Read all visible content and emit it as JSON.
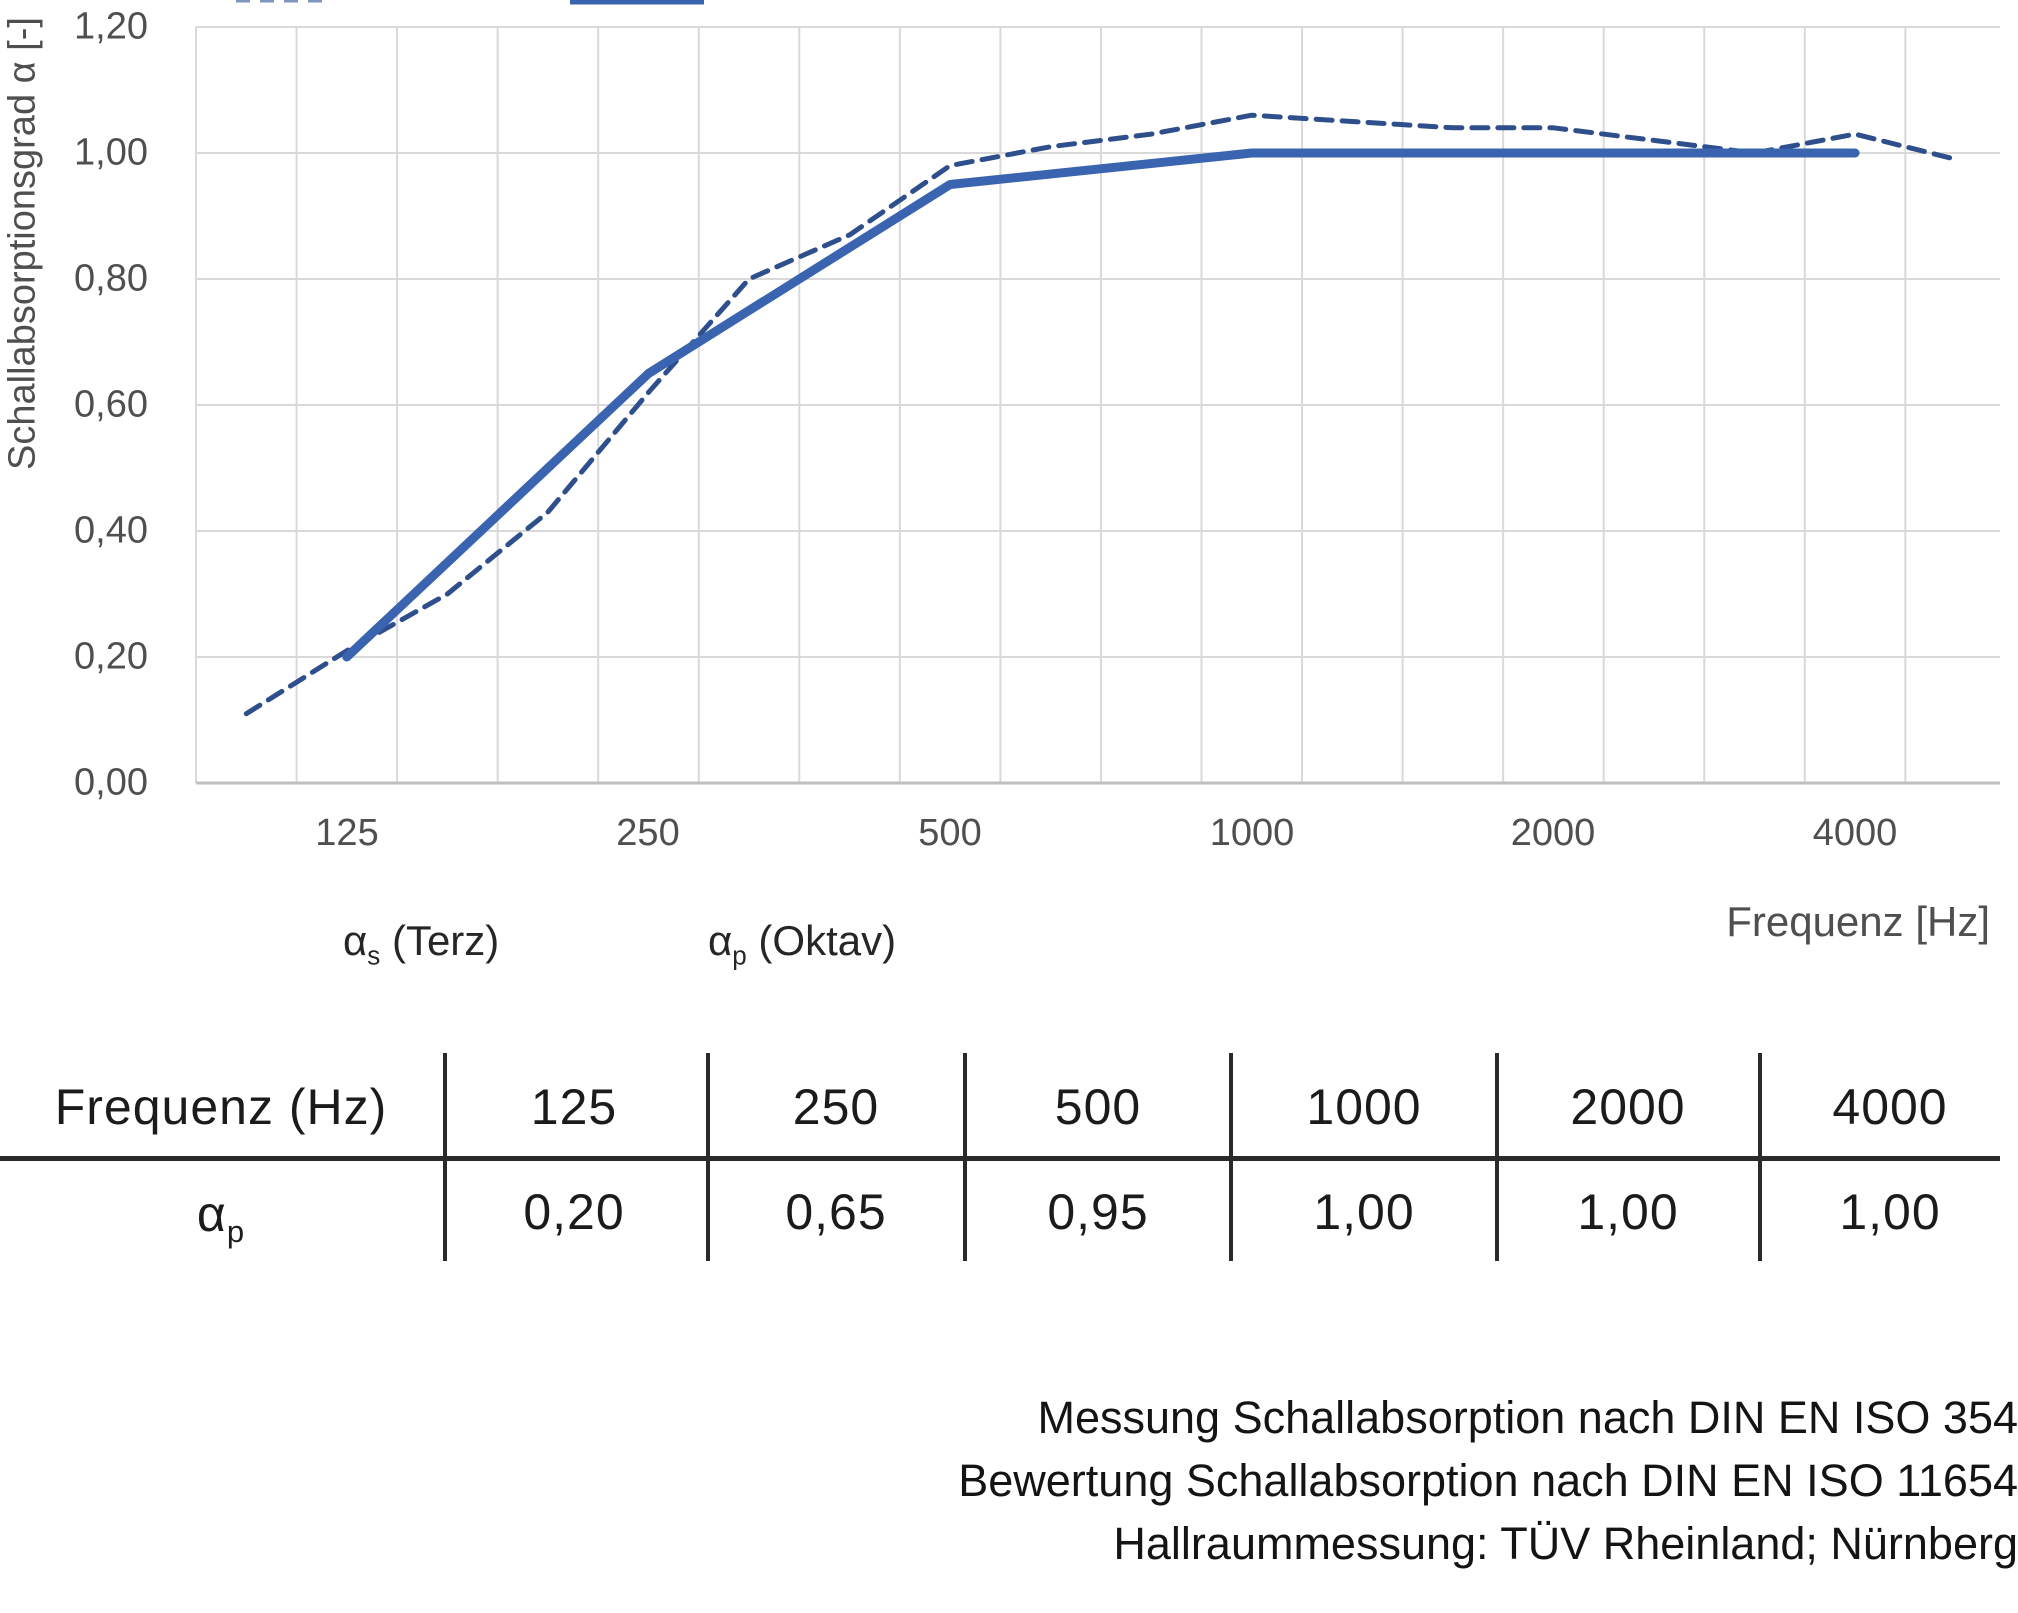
{
  "chart": {
    "y_axis_title": "Schallabsorptionsgrad α [-]",
    "x_axis_title": "Frequenz [Hz]",
    "y_ticks": [
      "1,20",
      "1,00",
      "0,80",
      "0,60",
      "0,40",
      "0,20",
      "0,00"
    ],
    "x_ticks": [
      "125",
      "250",
      "500",
      "1000",
      "2000",
      "4000"
    ],
    "colors": {
      "gridline": "#D9D9D9",
      "axis_line": "#BFBFBF",
      "tick_text": "#4f4f4f"
    },
    "legend": [
      {
        "alpha": "α",
        "sub": "s",
        "rest": " (Terz)",
        "swatch_color": "#8095BD",
        "swatch_style": "dashed"
      },
      {
        "alpha": "α",
        "sub": "p",
        "rest": " (Oktav)",
        "swatch_color": "#3A64AF",
        "swatch_style": "solid"
      }
    ]
  },
  "chart_data": {
    "type": "line",
    "title": "",
    "xlabel": "Frequenz [Hz]",
    "ylabel": "Schallabsorptionsgrad α [-]",
    "x_scale": "logarithmic, third-octave bands from 100 Hz to 5000 Hz",
    "ylim": [
      0,
      1.2
    ],
    "y_tick_step": 0.2,
    "x_tick_labels": [
      125,
      250,
      500,
      1000,
      2000,
      4000
    ],
    "grid": true,
    "legend_position": "bottom-left",
    "series": [
      {
        "name": "αs (Terz)",
        "style": "dashed",
        "color": "#2E4F8C",
        "x": [
          100,
          125,
          160,
          200,
          250,
          315,
          400,
          500,
          630,
          800,
          1000,
          1250,
          1600,
          2000,
          2500,
          3150,
          4000,
          5000
        ],
        "y": [
          0.11,
          0.21,
          0.3,
          0.43,
          0.62,
          0.8,
          0.87,
          0.98,
          1.01,
          1.03,
          1.06,
          1.05,
          1.04,
          1.04,
          1.02,
          1.0,
          1.03,
          0.99
        ]
      },
      {
        "name": "αp (Oktav)",
        "style": "solid",
        "color": "#3A64AF",
        "x": [
          125,
          250,
          500,
          1000,
          2000,
          4000
        ],
        "y": [
          0.2,
          0.65,
          0.95,
          1.0,
          1.0,
          1.0
        ]
      }
    ]
  },
  "table": {
    "header_label": "Frequenz (Hz)",
    "header_values": [
      "125",
      "250",
      "500",
      "1000",
      "2000",
      "4000"
    ],
    "row_label": {
      "alpha": "α",
      "sub": "p"
    },
    "row_values": [
      "0,20",
      "0,65",
      "0,95",
      "1,00",
      "1,00",
      "1,00"
    ]
  },
  "footer": {
    "line1": "Messung Schallabsorption nach DIN EN ISO 354",
    "line2": "Bewertung Schallabsorption nach DIN EN ISO 11654",
    "line3": "Hallraummessung: TÜV Rheinland; Nürnberg"
  }
}
